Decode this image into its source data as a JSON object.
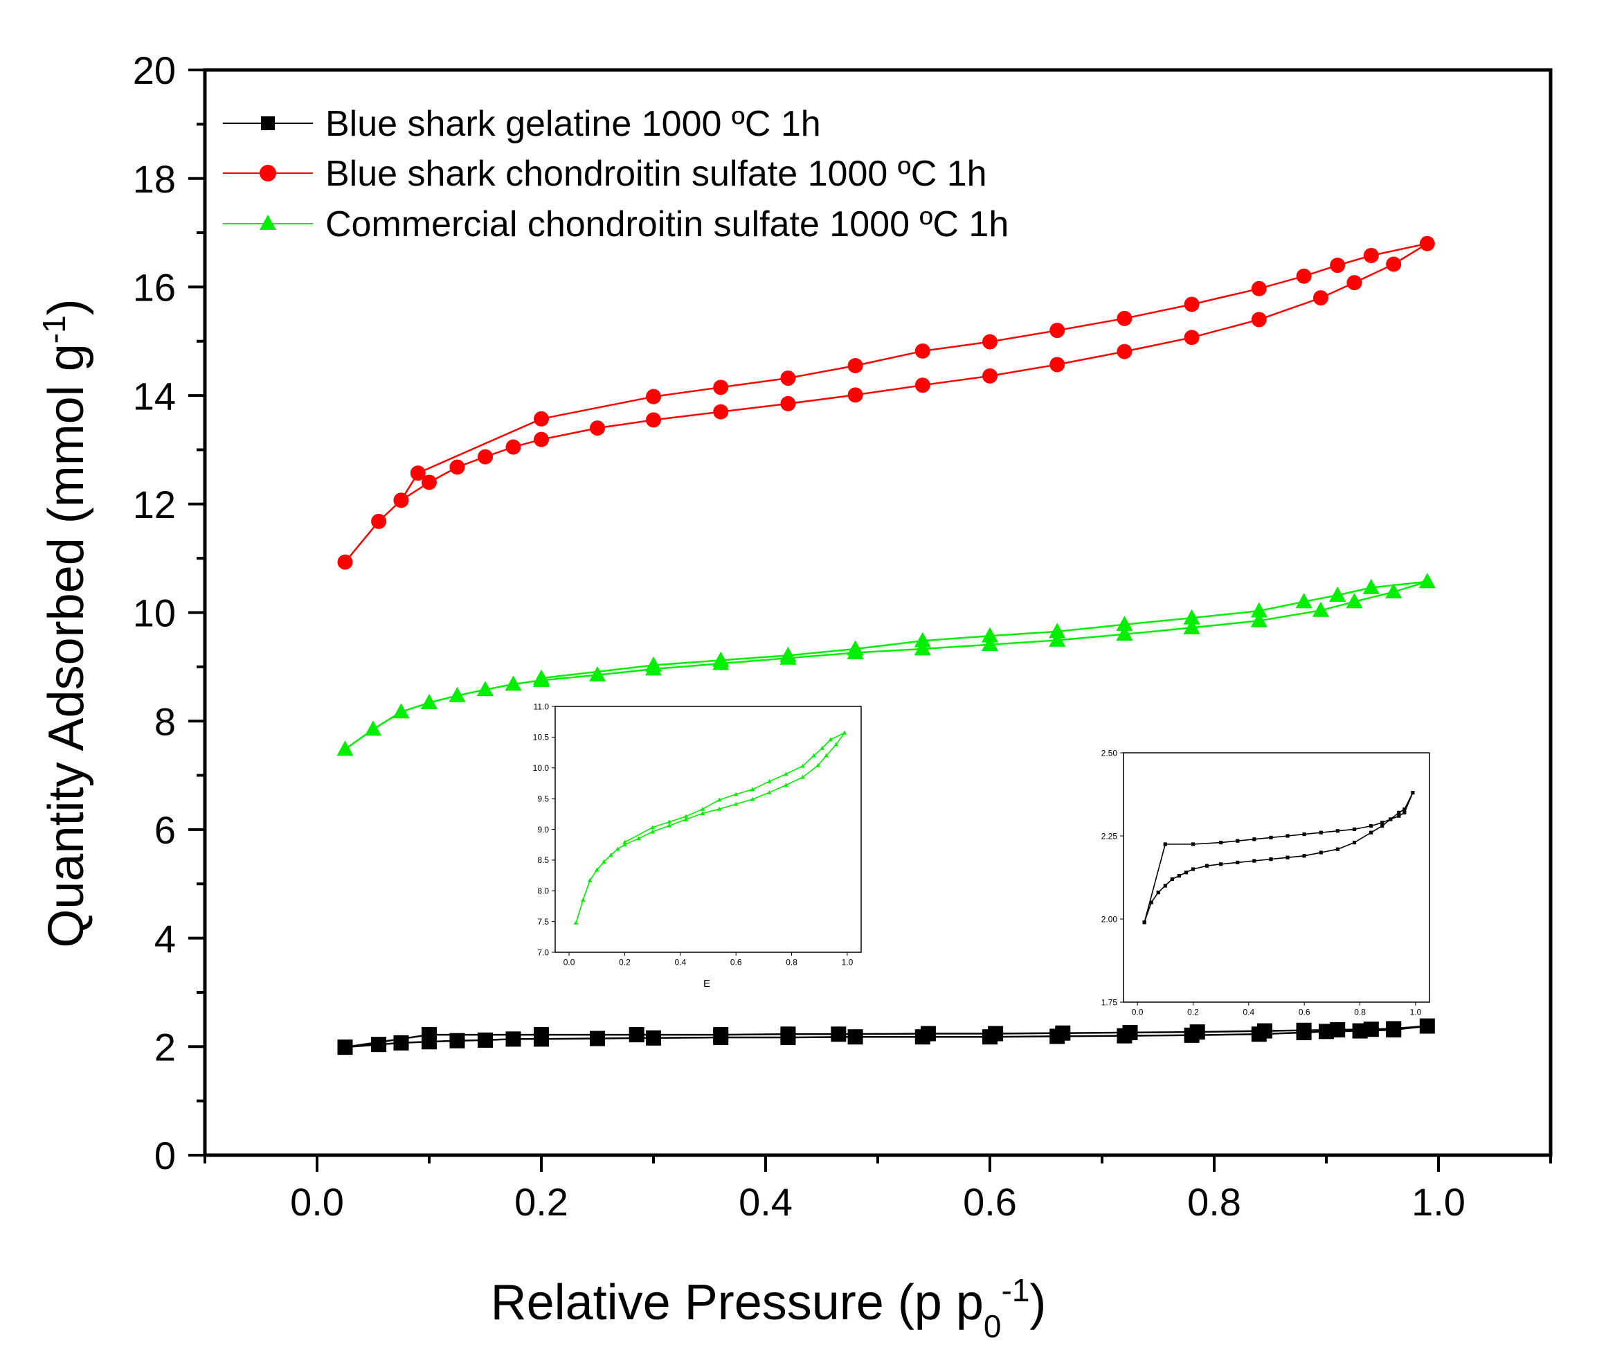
{
  "chart_data": [
    {
      "type": "line",
      "title": "",
      "xlabel": "Relative Pressure (p p",
      "xlabel_sub": "0",
      "xlabel_sup": "-1",
      "xlabel_end": ")",
      "ylabel": "Quantity Adsorbed (mmol g",
      "ylabel_sup": "-1",
      "ylabel_end": ")",
      "xlim": [
        -0.1,
        1.1
      ],
      "ylim": [
        0,
        20
      ],
      "xticks": [
        0.0,
        0.2,
        0.4,
        0.6,
        0.8,
        1.0
      ],
      "xtick_labels": [
        "0.0",
        "0.2",
        "0.4",
        "0.6",
        "0.8",
        "1.0"
      ],
      "yticks": [
        0,
        2,
        4,
        6,
        8,
        10,
        12,
        14,
        16,
        18,
        20
      ],
      "ytick_labels": [
        "0",
        "2",
        "4",
        "6",
        "8",
        "10",
        "12",
        "14",
        "16",
        "18",
        "20"
      ],
      "legend_position": "top-left",
      "series": [
        {
          "name": "Blue shark gelatine 1000 ºC 1h",
          "color": "#000000",
          "marker": "square",
          "x": [
            0.025,
            0.055,
            0.075,
            0.1,
            0.125,
            0.15,
            0.175,
            0.2,
            0.25,
            0.3,
            0.36,
            0.42,
            0.48,
            0.54,
            0.6,
            0.66,
            0.72,
            0.78,
            0.84,
            0.88,
            0.9,
            0.93,
            0.96,
            0.99,
            0.96,
            0.94,
            0.91,
            0.88,
            0.845,
            0.785,
            0.725,
            0.665,
            0.605,
            0.545,
            0.465,
            0.42,
            0.36,
            0.285,
            0.2,
            0.1,
            0.025
          ],
          "y": [
            1.99,
            2.04,
            2.07,
            2.09,
            2.11,
            2.12,
            2.14,
            2.14,
            2.15,
            2.16,
            2.17,
            2.17,
            2.18,
            2.18,
            2.18,
            2.19,
            2.2,
            2.21,
            2.23,
            2.26,
            2.28,
            2.29,
            2.31,
            2.38,
            2.33,
            2.32,
            2.31,
            2.3,
            2.29,
            2.27,
            2.26,
            2.25,
            2.24,
            2.24,
            2.23,
            2.23,
            2.22,
            2.22,
            2.22,
            2.22,
            1.99
          ]
        },
        {
          "name": "Blue shark chondroitin sulfate 1000 ºC 1h",
          "color": "#ff0000",
          "marker": "circle",
          "x": [
            0.025,
            0.055,
            0.075,
            0.1,
            0.125,
            0.15,
            0.175,
            0.2,
            0.25,
            0.3,
            0.36,
            0.42,
            0.48,
            0.54,
            0.6,
            0.66,
            0.72,
            0.78,
            0.84,
            0.895,
            0.925,
            0.96,
            0.99,
            0.94,
            0.91,
            0.88,
            0.84,
            0.78,
            0.72,
            0.66,
            0.6,
            0.54,
            0.48,
            0.42,
            0.36,
            0.3,
            0.2,
            0.09,
            0.075
          ],
          "y": [
            10.93,
            11.68,
            12.07,
            12.4,
            12.68,
            12.87,
            13.05,
            13.19,
            13.4,
            13.55,
            13.7,
            13.85,
            14.01,
            14.19,
            14.36,
            14.57,
            14.81,
            15.07,
            15.4,
            15.8,
            16.08,
            16.42,
            16.8,
            16.58,
            16.4,
            16.2,
            15.97,
            15.68,
            15.42,
            15.2,
            14.99,
            14.82,
            14.55,
            14.32,
            14.15,
            13.98,
            13.57,
            12.57,
            12.07
          ]
        },
        {
          "name": "Commercial chondroitin sulfate 1000 ºC 1h",
          "color": "#00ee00",
          "marker": "triangle",
          "x": [
            0.025,
            0.05,
            0.075,
            0.1,
            0.125,
            0.15,
            0.175,
            0.2,
            0.25,
            0.3,
            0.36,
            0.42,
            0.48,
            0.54,
            0.6,
            0.66,
            0.72,
            0.78,
            0.84,
            0.895,
            0.925,
            0.96,
            0.99,
            0.94,
            0.91,
            0.88,
            0.84,
            0.78,
            0.72,
            0.66,
            0.6,
            0.54,
            0.48,
            0.42,
            0.36,
            0.3,
            0.2
          ],
          "y": [
            7.48,
            7.85,
            8.17,
            8.34,
            8.47,
            8.58,
            8.68,
            8.75,
            8.85,
            8.96,
            9.06,
            9.16,
            9.26,
            9.33,
            9.41,
            9.49,
            9.6,
            9.72,
            9.85,
            10.04,
            10.2,
            10.38,
            10.57,
            10.46,
            10.32,
            10.2,
            10.03,
            9.9,
            9.78,
            9.65,
            9.57,
            9.48,
            9.33,
            9.21,
            9.12,
            9.03,
            8.79
          ]
        }
      ]
    },
    {
      "type": "line",
      "title": "",
      "xlabel": "E",
      "ylabel": "",
      "xlim": [
        -0.05,
        1.05
      ],
      "ylim": [
        7.0,
        11.0
      ],
      "xticks": [
        0.0,
        0.2,
        0.4,
        0.6,
        0.8,
        1.0
      ],
      "xtick_labels": [
        "0.0",
        "0.2",
        "0.4",
        "0.6",
        "0.8",
        "1.0"
      ],
      "yticks": [
        7.0,
        7.5,
        8.0,
        8.5,
        9.0,
        9.5,
        10.0,
        10.5,
        11.0
      ],
      "ytick_labels": [
        "7.0",
        "7.5",
        "8.0",
        "8.5",
        "9.0",
        "9.5",
        "10.0",
        "10.5",
        "11.0"
      ],
      "series": [
        {
          "name": "Commercial chondroitin sulfate 1000 ºC 1h",
          "color": "#00ee00",
          "marker": "small-triangle",
          "x": [
            0.025,
            0.05,
            0.075,
            0.1,
            0.125,
            0.15,
            0.175,
            0.2,
            0.25,
            0.3,
            0.36,
            0.42,
            0.48,
            0.54,
            0.6,
            0.66,
            0.72,
            0.78,
            0.84,
            0.895,
            0.925,
            0.96,
            0.99,
            0.94,
            0.91,
            0.88,
            0.84,
            0.78,
            0.72,
            0.66,
            0.6,
            0.54,
            0.48,
            0.42,
            0.36,
            0.3,
            0.2
          ],
          "y": [
            7.48,
            7.85,
            8.17,
            8.34,
            8.47,
            8.58,
            8.68,
            8.75,
            8.85,
            8.96,
            9.06,
            9.16,
            9.26,
            9.33,
            9.41,
            9.49,
            9.6,
            9.72,
            9.85,
            10.04,
            10.2,
            10.38,
            10.57,
            10.46,
            10.32,
            10.2,
            10.03,
            9.9,
            9.78,
            9.65,
            9.57,
            9.48,
            9.33,
            9.21,
            9.12,
            9.03,
            8.79
          ]
        }
      ]
    },
    {
      "type": "line",
      "title": "",
      "xlabel": "",
      "ylabel": "",
      "xlim": [
        -0.05,
        1.05
      ],
      "ylim": [
        1.75,
        2.5
      ],
      "xticks": [
        0.0,
        0.2,
        0.4,
        0.6,
        0.8,
        1.0
      ],
      "xtick_labels": [
        "0.0",
        "0.2",
        "0.4",
        "0.6",
        "0.8",
        "1.0"
      ],
      "yticks": [
        1.75,
        2.0,
        2.25,
        2.5
      ],
      "ytick_labels": [
        "1.75",
        "2.00",
        "2.25",
        "2.50"
      ],
      "series": [
        {
          "name": "Blue shark gelatine 1000 ºC 1h",
          "color": "#000000",
          "marker": "small-square",
          "x": [
            0.025,
            0.05,
            0.075,
            0.1,
            0.125,
            0.15,
            0.175,
            0.2,
            0.25,
            0.3,
            0.36,
            0.42,
            0.48,
            0.54,
            0.6,
            0.66,
            0.72,
            0.78,
            0.84,
            0.88,
            0.91,
            0.94,
            0.96,
            0.99,
            0.96,
            0.94,
            0.91,
            0.88,
            0.84,
            0.78,
            0.72,
            0.66,
            0.6,
            0.54,
            0.48,
            0.42,
            0.36,
            0.3,
            0.2,
            0.1,
            0.025
          ],
          "y": [
            1.99,
            2.05,
            2.08,
            2.1,
            2.12,
            2.13,
            2.14,
            2.15,
            2.16,
            2.165,
            2.17,
            2.175,
            2.18,
            2.185,
            2.19,
            2.2,
            2.21,
            2.23,
            2.26,
            2.28,
            2.3,
            2.32,
            2.33,
            2.38,
            2.32,
            2.31,
            2.3,
            2.29,
            2.28,
            2.27,
            2.265,
            2.26,
            2.255,
            2.25,
            2.245,
            2.24,
            2.235,
            2.23,
            2.225,
            2.225,
            1.99
          ]
        }
      ]
    }
  ]
}
